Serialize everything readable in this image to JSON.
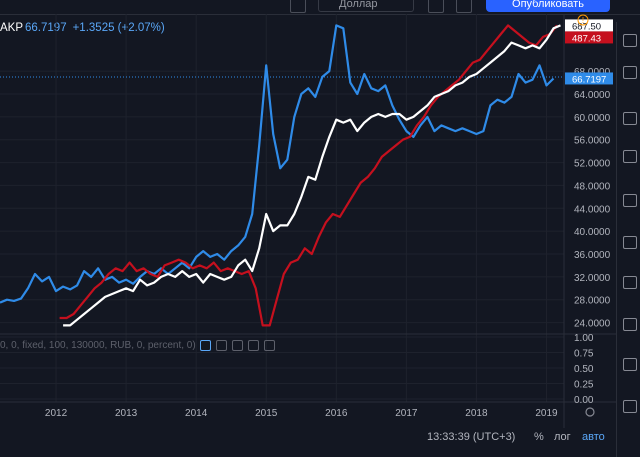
{
  "header": {
    "currency_label": "Доллар",
    "publish_label": "Опубликовать"
  },
  "legend": {
    "symbol": "AKP",
    "value": "66.7197",
    "change": "+1.3525 (+2.07%)"
  },
  "indicator_legend": "0, 0, fixed, 100, 130000, RUB, 0, percent, 0)",
  "bottom_bar": {
    "time": "13:33:39 (UTC+3)",
    "percent": "%",
    "log": "лог",
    "auto": "авто"
  },
  "chart_data": {
    "type": "line",
    "xlim": [
      2011.2,
      2019.25
    ],
    "ylim": [
      22,
      78
    ],
    "x_ticks": [
      2012,
      2013,
      2014,
      2015,
      2016,
      2017,
      2018,
      2019
    ],
    "x_tick_labels": [
      "2012",
      "2013",
      "2014",
      "2015",
      "2016",
      "2017",
      "2018",
      "2019"
    ],
    "y_ticks": [
      24,
      28,
      32,
      36,
      40,
      44,
      48,
      52,
      56,
      60,
      64,
      68
    ],
    "y_tick_labels": [
      "24.0000",
      "28.0000",
      "32.0000",
      "36.0000",
      "40.0000",
      "44.0000",
      "48.0000",
      "52.0000",
      "56.0000",
      "60.0000",
      "64.0000",
      "68.0000"
    ],
    "current_value_label": "66.7197",
    "current_value": 66.72,
    "pane2_ticks": [
      0.0,
      0.25,
      0.5,
      0.75,
      1.0
    ],
    "pane2_tick_labels": [
      "0.00",
      "0.25",
      "0.50",
      "0.75",
      "1.00"
    ],
    "series": [
      {
        "name": "",
        "color": "#2f8be8",
        "end_label": "",
        "points": [
          [
            2011.2,
            27.5
          ],
          [
            2011.3,
            28.0
          ],
          [
            2011.4,
            27.8
          ],
          [
            2011.5,
            28.2
          ],
          [
            2011.6,
            30.0
          ],
          [
            2011.7,
            32.5
          ],
          [
            2011.8,
            31.2
          ],
          [
            2011.9,
            32.0
          ],
          [
            2012.0,
            29.5
          ],
          [
            2012.1,
            30.3
          ],
          [
            2012.2,
            29.8
          ],
          [
            2012.3,
            30.5
          ],
          [
            2012.4,
            33.0
          ],
          [
            2012.5,
            32.0
          ],
          [
            2012.6,
            33.5
          ],
          [
            2012.7,
            31.5
          ],
          [
            2012.8,
            32.0
          ],
          [
            2012.9,
            31.0
          ],
          [
            2013.0,
            31.5
          ],
          [
            2013.1,
            30.8
          ],
          [
            2013.2,
            32.0
          ],
          [
            2013.3,
            33.0
          ],
          [
            2013.4,
            32.5
          ],
          [
            2013.5,
            33.5
          ],
          [
            2013.6,
            32.5
          ],
          [
            2013.7,
            33.5
          ],
          [
            2013.8,
            34.5
          ],
          [
            2013.9,
            33.5
          ],
          [
            2014.0,
            35.5
          ],
          [
            2014.1,
            36.5
          ],
          [
            2014.2,
            35.5
          ],
          [
            2014.3,
            36.0
          ],
          [
            2014.4,
            35.0
          ],
          [
            2014.5,
            36.5
          ],
          [
            2014.6,
            37.5
          ],
          [
            2014.7,
            39.0
          ],
          [
            2014.8,
            43.0
          ],
          [
            2014.9,
            55.0
          ],
          [
            2015.0,
            69.0
          ],
          [
            2015.1,
            57.0
          ],
          [
            2015.2,
            51.0
          ],
          [
            2015.3,
            52.5
          ],
          [
            2015.4,
            60.0
          ],
          [
            2015.5,
            64.0
          ],
          [
            2015.6,
            65.0
          ],
          [
            2015.7,
            63.5
          ],
          [
            2015.8,
            67.0
          ],
          [
            2015.9,
            68.0
          ],
          [
            2016.0,
            76.0
          ],
          [
            2016.1,
            75.5
          ],
          [
            2016.2,
            66.0
          ],
          [
            2016.3,
            64.0
          ],
          [
            2016.4,
            67.5
          ],
          [
            2016.5,
            65.0
          ],
          [
            2016.6,
            64.5
          ],
          [
            2016.7,
            65.5
          ],
          [
            2016.8,
            62.0
          ],
          [
            2016.9,
            59.5
          ],
          [
            2017.0,
            57.5
          ],
          [
            2017.1,
            56.5
          ],
          [
            2017.2,
            58.5
          ],
          [
            2017.3,
            60.0
          ],
          [
            2017.4,
            57.5
          ],
          [
            2017.5,
            58.5
          ],
          [
            2017.6,
            58.0
          ],
          [
            2017.7,
            57.5
          ],
          [
            2017.8,
            58.0
          ],
          [
            2017.9,
            57.5
          ],
          [
            2018.0,
            57.0
          ],
          [
            2018.1,
            57.5
          ],
          [
            2018.2,
            62.0
          ],
          [
            2018.3,
            63.0
          ],
          [
            2018.4,
            62.5
          ],
          [
            2018.5,
            63.5
          ],
          [
            2018.6,
            67.5
          ],
          [
            2018.7,
            66.0
          ],
          [
            2018.8,
            66.5
          ],
          [
            2018.9,
            69.0
          ],
          [
            2019.0,
            65.5
          ],
          [
            2019.1,
            66.72
          ]
        ]
      },
      {
        "name": "",
        "color": "#c5101e",
        "end_label": "487.43",
        "points": [
          [
            2012.05,
            24.8
          ],
          [
            2012.15,
            24.8
          ],
          [
            2012.25,
            25.5
          ],
          [
            2012.35,
            27.0
          ],
          [
            2012.45,
            28.5
          ],
          [
            2012.55,
            30.0
          ],
          [
            2012.65,
            31.0
          ],
          [
            2012.75,
            32.5
          ],
          [
            2012.85,
            33.5
          ],
          [
            2012.95,
            33.0
          ],
          [
            2013.05,
            34.5
          ],
          [
            2013.15,
            33.0
          ],
          [
            2013.25,
            33.5
          ],
          [
            2013.35,
            32.5
          ],
          [
            2013.45,
            32.0
          ],
          [
            2013.55,
            34.0
          ],
          [
            2013.65,
            34.5
          ],
          [
            2013.75,
            35.0
          ],
          [
            2013.85,
            34.5
          ],
          [
            2013.95,
            33.5
          ],
          [
            2014.05,
            34.0
          ],
          [
            2014.15,
            33.5
          ],
          [
            2014.25,
            34.5
          ],
          [
            2014.35,
            33.0
          ],
          [
            2014.45,
            33.5
          ],
          [
            2014.55,
            33.0
          ],
          [
            2014.65,
            32.5
          ],
          [
            2014.75,
            33.0
          ],
          [
            2014.85,
            30.0
          ],
          [
            2014.95,
            23.5
          ],
          [
            2015.05,
            23.5
          ],
          [
            2015.15,
            28.0
          ],
          [
            2015.25,
            32.5
          ],
          [
            2015.35,
            34.5
          ],
          [
            2015.45,
            35.0
          ],
          [
            2015.55,
            37.0
          ],
          [
            2015.65,
            36.0
          ],
          [
            2015.75,
            39.0
          ],
          [
            2015.85,
            41.5
          ],
          [
            2015.95,
            43.0
          ],
          [
            2016.05,
            42.5
          ],
          [
            2016.15,
            44.5
          ],
          [
            2016.25,
            46.5
          ],
          [
            2016.35,
            48.5
          ],
          [
            2016.45,
            49.5
          ],
          [
            2016.55,
            51.0
          ],
          [
            2016.65,
            53.0
          ],
          [
            2016.75,
            54.0
          ],
          [
            2016.85,
            55.0
          ],
          [
            2016.95,
            56.0
          ],
          [
            2017.05,
            56.5
          ],
          [
            2017.15,
            58.5
          ],
          [
            2017.25,
            60.0
          ],
          [
            2017.35,
            62.0
          ],
          [
            2017.45,
            63.5
          ],
          [
            2017.55,
            64.5
          ],
          [
            2017.65,
            65.5
          ],
          [
            2017.75,
            66.5
          ],
          [
            2017.85,
            68.0
          ],
          [
            2017.95,
            69.5
          ],
          [
            2018.05,
            70.0
          ],
          [
            2018.15,
            71.5
          ],
          [
            2018.25,
            73.0
          ],
          [
            2018.35,
            74.5
          ],
          [
            2018.45,
            76.0
          ],
          [
            2018.55,
            75.0
          ],
          [
            2018.65,
            74.0
          ],
          [
            2018.75,
            73.0
          ],
          [
            2018.85,
            72.5
          ],
          [
            2018.95,
            74.0
          ],
          [
            2019.05,
            74.5
          ],
          [
            2019.15,
            76.0
          ]
        ]
      },
      {
        "name": "",
        "color": "#ffffff",
        "end_label": "687.50",
        "points": [
          [
            2012.1,
            23.5
          ],
          [
            2012.2,
            23.5
          ],
          [
            2012.3,
            24.5
          ],
          [
            2012.4,
            25.5
          ],
          [
            2012.5,
            26.5
          ],
          [
            2012.6,
            27.5
          ],
          [
            2012.7,
            28.5
          ],
          [
            2012.8,
            29.0
          ],
          [
            2012.9,
            29.5
          ],
          [
            2013.0,
            30.0
          ],
          [
            2013.1,
            29.5
          ],
          [
            2013.2,
            31.5
          ],
          [
            2013.3,
            30.5
          ],
          [
            2013.4,
            31.0
          ],
          [
            2013.5,
            32.0
          ],
          [
            2013.6,
            32.5
          ],
          [
            2013.7,
            32.0
          ],
          [
            2013.8,
            33.0
          ],
          [
            2013.9,
            32.0
          ],
          [
            2014.0,
            32.5
          ],
          [
            2014.1,
            31.0
          ],
          [
            2014.2,
            32.5
          ],
          [
            2014.3,
            32.0
          ],
          [
            2014.4,
            31.5
          ],
          [
            2014.5,
            32.0
          ],
          [
            2014.6,
            34.0
          ],
          [
            2014.7,
            35.0
          ],
          [
            2014.8,
            33.0
          ],
          [
            2014.9,
            37.0
          ],
          [
            2015.0,
            43.0
          ],
          [
            2015.1,
            40.0
          ],
          [
            2015.2,
            41.0
          ],
          [
            2015.3,
            41.0
          ],
          [
            2015.4,
            43.0
          ],
          [
            2015.5,
            46.0
          ],
          [
            2015.6,
            49.5
          ],
          [
            2015.7,
            49.0
          ],
          [
            2015.8,
            53.0
          ],
          [
            2015.9,
            56.5
          ],
          [
            2016.0,
            59.5
          ],
          [
            2016.1,
            59.0
          ],
          [
            2016.2,
            59.5
          ],
          [
            2016.3,
            57.5
          ],
          [
            2016.4,
            59.0
          ],
          [
            2016.5,
            60.0
          ],
          [
            2016.6,
            60.5
          ],
          [
            2016.7,
            60.0
          ],
          [
            2016.8,
            60.5
          ],
          [
            2016.9,
            60.5
          ],
          [
            2017.0,
            59.5
          ],
          [
            2017.1,
            60.0
          ],
          [
            2017.2,
            61.0
          ],
          [
            2017.3,
            62.0
          ],
          [
            2017.4,
            63.5
          ],
          [
            2017.5,
            64.0
          ],
          [
            2017.6,
            64.5
          ],
          [
            2017.7,
            65.5
          ],
          [
            2017.8,
            66.0
          ],
          [
            2017.9,
            67.0
          ],
          [
            2018.0,
            67.5
          ],
          [
            2018.1,
            68.5
          ],
          [
            2018.2,
            69.5
          ],
          [
            2018.3,
            70.5
          ],
          [
            2018.4,
            71.5
          ],
          [
            2018.5,
            73.0
          ],
          [
            2018.6,
            72.5
          ],
          [
            2018.7,
            72.0
          ],
          [
            2018.8,
            72.5
          ],
          [
            2018.9,
            72.0
          ],
          [
            2019.0,
            73.5
          ],
          [
            2019.1,
            75.5
          ],
          [
            2019.2,
            76.0
          ]
        ]
      }
    ]
  }
}
